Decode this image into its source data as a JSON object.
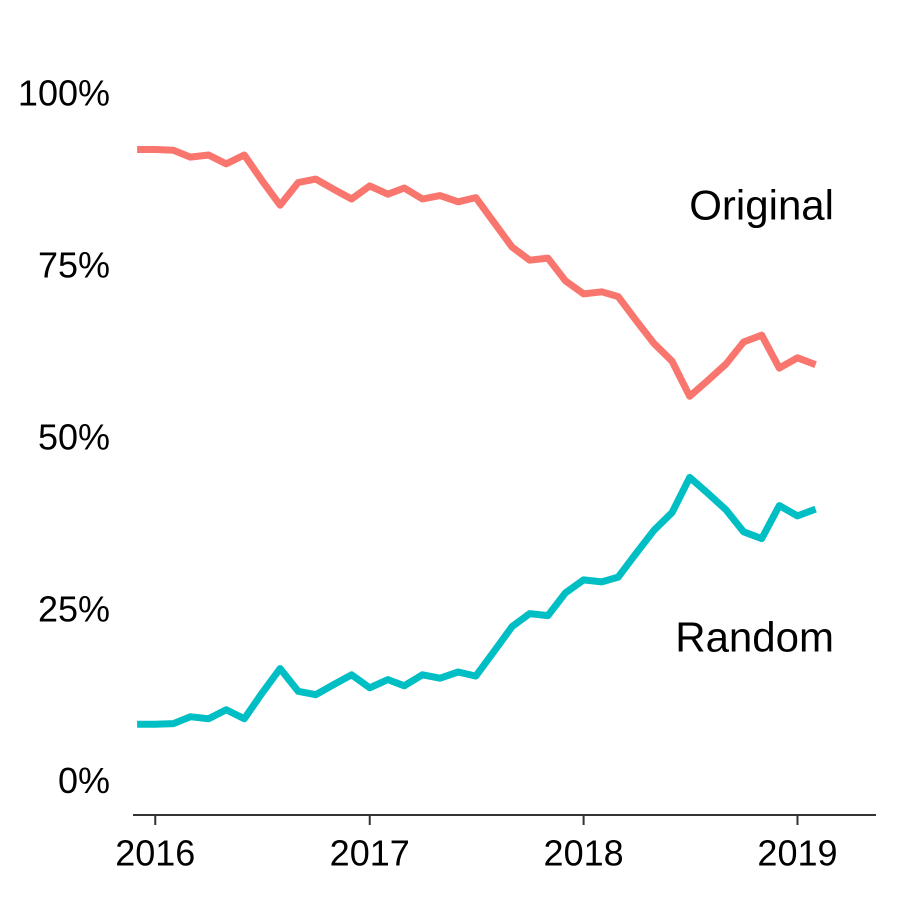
{
  "chart_data": {
    "type": "line",
    "title": "",
    "xlabel": "",
    "ylabel": "",
    "x_domain": [
      "2015-11-24",
      "2019-05-15"
    ],
    "ylim": [
      -5,
      107
    ],
    "x_ticks": [
      {
        "date": "2016-01-01",
        "label": "2016"
      },
      {
        "date": "2017-01-01",
        "label": "2017"
      },
      {
        "date": "2018-01-01",
        "label": "2018"
      },
      {
        "date": "2019-01-01",
        "label": "2019"
      }
    ],
    "y_ticks": [
      {
        "value": 0,
        "label": "0%"
      },
      {
        "value": 25,
        "label": "25%"
      },
      {
        "value": 50,
        "label": "50%"
      },
      {
        "value": 75,
        "label": "75%"
      },
      {
        "value": 100,
        "label": "100%"
      }
    ],
    "grid": false,
    "legend": "direct labels",
    "x": [
      "2015-12-01",
      "2016-01-01",
      "2016-02-01",
      "2016-03-01",
      "2016-04-01",
      "2016-05-01",
      "2016-06-01",
      "2016-07-01",
      "2016-08-01",
      "2016-09-01",
      "2016-10-01",
      "2016-11-01",
      "2016-12-01",
      "2017-01-01",
      "2017-02-01",
      "2017-03-01",
      "2017-04-01",
      "2017-05-01",
      "2017-06-01",
      "2017-07-01",
      "2017-08-01",
      "2017-09-01",
      "2017-10-01",
      "2017-11-01",
      "2017-12-01",
      "2018-01-01",
      "2018-02-01",
      "2018-03-01",
      "2018-04-01",
      "2018-05-01",
      "2018-06-01",
      "2018-07-01",
      "2018-08-01",
      "2018-09-01",
      "2018-10-01",
      "2018-11-01",
      "2018-12-01",
      "2019-01-01",
      "2019-02-01"
    ],
    "series": [
      {
        "name": "Original",
        "color": "#F8766D",
        "values": [
          91.8,
          91.8,
          91.7,
          90.7,
          91.0,
          89.7,
          91.0,
          87.3,
          83.7,
          87.0,
          87.5,
          86.0,
          84.6,
          86.5,
          85.3,
          86.2,
          84.6,
          85.1,
          84.2,
          84.8,
          81.2,
          77.6,
          75.7,
          76.0,
          72.7,
          70.8,
          71.1,
          70.4,
          66.9,
          63.6,
          61.0,
          55.9,
          58.2,
          60.6,
          63.8,
          64.8,
          60.0,
          61.5,
          60.5
        ]
      },
      {
        "name": "Random",
        "color": "#00BFC4",
        "values": [
          8.2,
          8.2,
          8.3,
          9.3,
          9.0,
          10.3,
          9.0,
          12.7,
          16.3,
          13.0,
          12.5,
          14.0,
          15.4,
          13.5,
          14.7,
          13.8,
          15.4,
          14.9,
          15.8,
          15.2,
          18.8,
          22.4,
          24.3,
          24.0,
          27.3,
          29.2,
          28.9,
          29.6,
          33.1,
          36.4,
          39.0,
          44.1,
          41.8,
          39.4,
          36.2,
          35.2,
          40.0,
          38.5,
          39.5
        ]
      }
    ]
  }
}
